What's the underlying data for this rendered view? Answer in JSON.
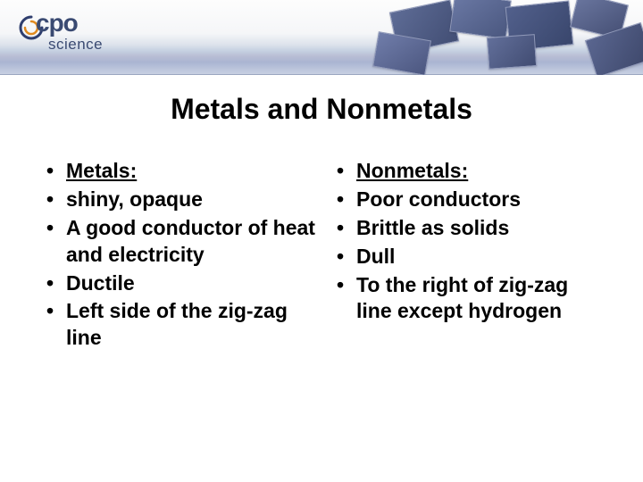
{
  "logo": {
    "top": "cpo",
    "bottom": "science"
  },
  "title": "Metals and Nonmetals",
  "left": {
    "items": [
      {
        "text": "Metals:",
        "underline": true
      },
      {
        "text": "shiny, opaque"
      },
      {
        "text": "A good conductor of heat and electricity"
      },
      {
        "text": "Ductile"
      },
      {
        "text": "Left side of the zig-zag line"
      }
    ]
  },
  "right": {
    "items": [
      {
        "text": "Nonmetals:",
        "underline": true
      },
      {
        "text": "Poor conductors"
      },
      {
        "text": "Brittle as solids"
      },
      {
        "text": "Dull"
      },
      {
        "text": "To the right of zig-zag line except hydrogen"
      }
    ]
  },
  "colors": {
    "text": "#000000",
    "logo_text": "#3a4a72",
    "header_gradient_top": "#fdfdfd",
    "header_gradient_bottom": "#c8d0e2",
    "swirl_blue": "#2f3e6e",
    "swirl_orange": "#e08a1f"
  }
}
